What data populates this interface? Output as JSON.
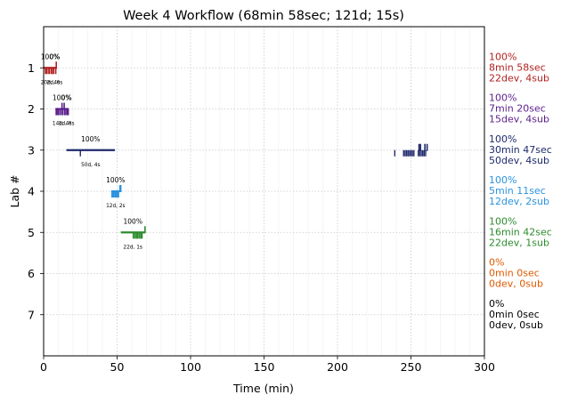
{
  "chart_data": {
    "type": "timeline",
    "title": "Week 4 Workflow (68min 58sec; 121d; 15s)",
    "xlabel": "Time (min)",
    "ylabel": "Lab #",
    "xlim": [
      0,
      300
    ],
    "ylim": [
      8,
      0
    ],
    "grid": true,
    "x_ticks": [
      "0",
      "50",
      "100",
      "150",
      "200",
      "250",
      "300"
    ],
    "y_ticks": [
      "1",
      "2",
      "3",
      "4",
      "5",
      "6",
      "7"
    ],
    "labs": [
      {
        "lab": 1,
        "color": "#b22222",
        "pct_label": "100%",
        "pct_label_2": "0%",
        "count_label": "20d, 4s",
        "count_label_2": "2d, 0s",
        "main_segments": [
          [
            0,
            9
          ]
        ],
        "dev_ticks": [
          1.2,
          2.0,
          3.1,
          4.0,
          5.2,
          6.1,
          7.0,
          8.3
        ],
        "sub_ticks": [
          8.6
        ],
        "side": [
          "100%",
          "8min 58sec",
          "22dev, 4sub"
        ]
      },
      {
        "lab": 2,
        "color": "#5b1f8c",
        "pct_label": "100%",
        "pct_label_2": "0%",
        "count_label": "14d, 4s",
        "count_label_2": "1d, 0s",
        "main_segments": [
          [
            8,
            17
          ]
        ],
        "dev_ticks": [
          8.5,
          9.2,
          10.0,
          11.0,
          12.1,
          13.0,
          14.2,
          15.1,
          16.0,
          16.8
        ],
        "sub_ticks": [
          12.5,
          14.0
        ],
        "side": [
          "100%",
          "7min 20sec",
          "15dev, 4sub"
        ]
      },
      {
        "lab": 3,
        "color": "#1f2a6e",
        "pct_label": "100%",
        "count_label": "50d, 4s",
        "main_segments": [
          [
            15.5,
            48.5
          ]
        ],
        "dev_ticks": [
          25,
          239,
          245,
          246,
          247,
          248,
          249,
          250,
          251,
          252,
          255,
          256,
          257,
          258,
          259,
          260
        ],
        "sub_ticks": [
          255.5,
          256.5,
          259.5,
          261.0
        ],
        "side": [
          "100%",
          "30min 47sec",
          "50dev, 4sub"
        ]
      },
      {
        "lab": 4,
        "color": "#2b93e0",
        "pct_label": "100%",
        "count_label": "12d, 2s",
        "main_segments": [
          [
            46,
            52
          ]
        ],
        "dev_ticks": [
          46.5,
          47.2,
          48.0,
          48.8,
          49.5,
          50.2,
          51.0
        ],
        "sub_ticks": [
          52.0,
          52.5
        ],
        "side": [
          "100%",
          "5min 11sec",
          "12dev, 2sub"
        ]
      },
      {
        "lab": 5,
        "color": "#2e8b2e",
        "pct_label": "100%",
        "count_label": "22d, 1s",
        "main_segments": [
          [
            52.5,
            69
          ]
        ],
        "dev_ticks": [
          61,
          62,
          63,
          63.5,
          64,
          65,
          66,
          66.5,
          67
        ],
        "sub_ticks": [
          69
        ],
        "side": [
          "100%",
          "16min 42sec",
          "22dev, 1sub"
        ]
      },
      {
        "lab": 6,
        "color": "#e05a00",
        "main_segments": [],
        "dev_ticks": [],
        "sub_ticks": [],
        "side": [
          "0%",
          "0min 0sec",
          "0dev, 0sub"
        ]
      },
      {
        "lab": 7,
        "color": "#000000",
        "main_segments": [],
        "dev_ticks": [],
        "sub_ticks": [],
        "side": [
          "0%",
          "0min 0sec",
          "0dev, 0sub"
        ]
      }
    ]
  }
}
